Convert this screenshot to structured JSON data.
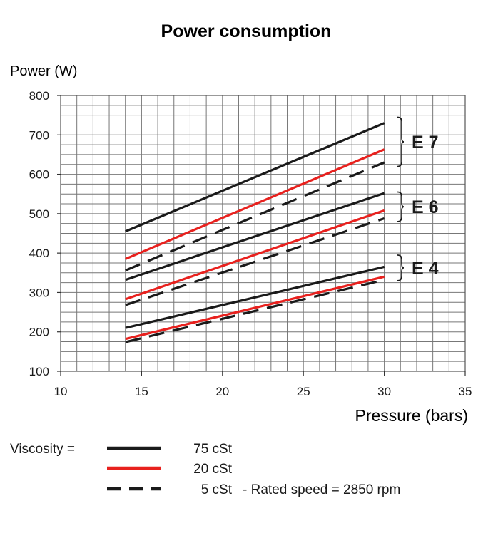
{
  "chart_data": {
    "type": "line",
    "title": "Power consumption",
    "ylabel": "Power (W)",
    "xlabel": "Pressure (bars)",
    "xlim": [
      10,
      35
    ],
    "ylim": [
      100,
      800
    ],
    "x_ticks": [
      10,
      15,
      20,
      25,
      30,
      35
    ],
    "y_ticks": [
      100,
      200,
      300,
      400,
      500,
      600,
      700,
      800
    ],
    "grid": true,
    "series": [
      {
        "name": "E7 75 cSt",
        "group": "E7",
        "viscosity": "75 cSt",
        "x": [
          14,
          30
        ],
        "y": [
          455,
          730
        ]
      },
      {
        "name": "E7 20 cSt",
        "group": "E7",
        "viscosity": "20 cSt",
        "x": [
          14,
          30
        ],
        "y": [
          385,
          663
        ]
      },
      {
        "name": "E7 5 cSt",
        "group": "E7",
        "viscosity": "5 cSt",
        "x": [
          14,
          30
        ],
        "y": [
          356,
          630
        ]
      },
      {
        "name": "E6 75 cSt",
        "group": "E6",
        "viscosity": "75 cSt",
        "x": [
          14,
          30
        ],
        "y": [
          332,
          552
        ]
      },
      {
        "name": "E6 20 cSt",
        "group": "E6",
        "viscosity": "20 cSt",
        "x": [
          14,
          30
        ],
        "y": [
          283,
          508
        ]
      },
      {
        "name": "E6 5 cSt",
        "group": "E6",
        "viscosity": "5 cSt",
        "x": [
          14,
          30
        ],
        "y": [
          268,
          488
        ]
      },
      {
        "name": "E4 75 cSt",
        "group": "E4",
        "viscosity": "75 cSt",
        "x": [
          14,
          30
        ],
        "y": [
          210,
          365
        ]
      },
      {
        "name": "E4 20 cSt",
        "group": "E4",
        "viscosity": "20 cSt",
        "x": [
          14,
          30
        ],
        "y": [
          182,
          340
        ]
      },
      {
        "name": "E4 5 cSt",
        "group": "E4",
        "viscosity": "5 cSt",
        "x": [
          14,
          30
        ],
        "y": [
          174,
          332
        ]
      }
    ],
    "groups": [
      {
        "label": "E 7",
        "range": [
          620,
          745
        ]
      },
      {
        "label": "E 6",
        "range": [
          480,
          555
        ]
      },
      {
        "label": "E 4",
        "range": [
          330,
          395
        ]
      }
    ],
    "legend": {
      "prefix": "Viscosity =",
      "entries": [
        {
          "label": "75 cSt",
          "style": "solid",
          "color": "#1a1a1a"
        },
        {
          "label": "20 cSt",
          "style": "solid",
          "color": "#e8211e"
        },
        {
          "label": "5 cSt",
          "style": "dashed",
          "color": "#1a1a1a"
        }
      ],
      "note": "-  Rated speed = 2850 rpm"
    },
    "colors": {
      "black": "#1a1a1a",
      "red": "#e8211e",
      "grid": "#777777"
    }
  }
}
